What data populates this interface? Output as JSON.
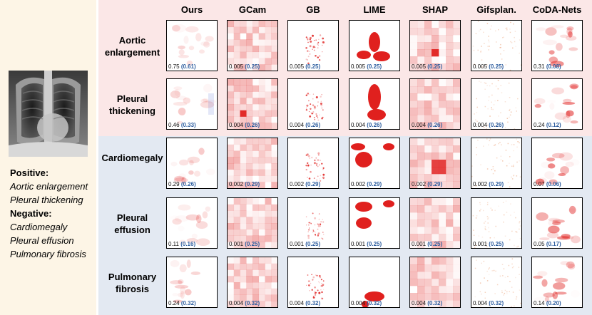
{
  "left": {
    "positive_label": "Positive:",
    "positive_items": [
      "Aortic enlargement",
      "Pleural thickening"
    ],
    "negative_label": "Negative:",
    "negative_items": [
      "Cardiomegaly",
      "Pleural effusion",
      "Pulmonary fibrosis"
    ]
  },
  "columns": [
    "Ours",
    "GCam",
    "GB",
    "LIME",
    "SHAP",
    "Gifsplan.",
    "CoDA-Nets"
  ],
  "rows": [
    {
      "label": "Aortic enlargement",
      "group": "positive",
      "scores": [
        [
          "0.75",
          "(0.61)"
        ],
        [
          "0.005",
          "(0.25)"
        ],
        [
          "0.005",
          "(0.25)"
        ],
        [
          "0.005",
          "(0.25)"
        ],
        [
          "0.005",
          "(0.25)"
        ],
        [
          "0.005",
          "(0.25)"
        ],
        [
          "0.31",
          "(0.08)"
        ]
      ]
    },
    {
      "label": "Pleural thickening",
      "group": "positive",
      "scores": [
        [
          "0.46",
          "(0.33)"
        ],
        [
          "0.004",
          "(0.26)"
        ],
        [
          "0.004",
          "(0.26)"
        ],
        [
          "0.004",
          "(0.26)"
        ],
        [
          "0.004",
          "(0.26)"
        ],
        [
          "0.004",
          "(0.26)"
        ],
        [
          "0.24",
          "(0.12)"
        ]
      ]
    },
    {
      "label": "Cardiomegaly",
      "group": "negative",
      "scores": [
        [
          "0.29",
          "(0.26)"
        ],
        [
          "0.002",
          "(0.29)"
        ],
        [
          "0.002",
          "(0.29)"
        ],
        [
          "0.002",
          "(0.29)"
        ],
        [
          "0.002",
          "(0.29)"
        ],
        [
          "0.002",
          "(0.29)"
        ],
        [
          "0.07",
          "(0.06)"
        ]
      ]
    },
    {
      "label": "Pleural effusion",
      "group": "negative",
      "scores": [
        [
          "0.11",
          "(0.16)"
        ],
        [
          "0.001",
          "(0.25)"
        ],
        [
          "0.001",
          "(0.25)"
        ],
        [
          "0.001",
          "(0.25)"
        ],
        [
          "0.001",
          "(0.25)"
        ],
        [
          "0.001",
          "(0.25)"
        ],
        [
          "0.05",
          "(0.17)"
        ]
      ]
    },
    {
      "label": "Pulmonary fibrosis",
      "group": "negative",
      "scores": [
        [
          "0.24",
          "(0.32)"
        ],
        [
          "0.004",
          "(0.32)"
        ],
        [
          "0.004",
          "(0.32)"
        ],
        [
          "0.004",
          "(0.32)"
        ],
        [
          "0.004",
          "(0.32)"
        ],
        [
          "0.004",
          "(0.32)"
        ],
        [
          "0.14",
          "(0.20)"
        ]
      ]
    }
  ],
  "colors": {
    "positive_band": "#fbe7e7",
    "negative_band": "#e3e9f2",
    "left_panel": "#fdf5e6",
    "heat": "#e0201e",
    "score_highlight": "#2f5fa0"
  }
}
